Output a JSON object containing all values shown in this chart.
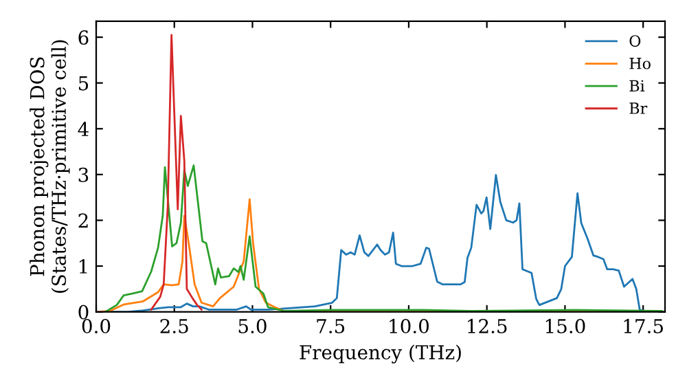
{
  "chart_data": {
    "type": "line",
    "xlabel": "Frequency (THz)",
    "ylabel": "Phonon projected DOS\n(States/THz·primitive cell)",
    "xlim": [
      0,
      18.2
    ],
    "ylim": [
      0,
      6.35
    ],
    "xticks": [
      {
        "value": 0,
        "label": "0.0"
      },
      2.5,
      {
        "value": 5,
        "label": "5.0"
      },
      7.5,
      {
        "value": 10,
        "label": "10.0"
      },
      12.5,
      {
        "value": 15,
        "label": "15.0"
      },
      17.5
    ],
    "yticks": [
      0,
      1,
      2,
      3,
      4,
      5,
      6
    ],
    "grid": false,
    "legend": "top right",
    "line_style": "solid",
    "marker": "none",
    "series": [
      {
        "name": "O",
        "color": "#1f77b4",
        "x": [
          0,
          1,
          1.5,
          2,
          2.3,
          2.7,
          2.9,
          3.1,
          3.3,
          3.6,
          4.5,
          4.8,
          4.95,
          5.5,
          6,
          7,
          7.55,
          7.7,
          7.84,
          8.0,
          8.14,
          8.27,
          8.43,
          8.58,
          8.71,
          8.99,
          9.1,
          9.24,
          9.37,
          9.5,
          9.59,
          9.77,
          10.12,
          10.38,
          10.56,
          10.65,
          10.91,
          11.09,
          11.66,
          11.79,
          11.88,
          12.0,
          12.17,
          12.32,
          12.39,
          12.49,
          12.61,
          12.79,
          12.93,
          13.12,
          13.34,
          13.45,
          13.54,
          13.64,
          13.93,
          14.08,
          14.18,
          14.74,
          14.88,
          15.0,
          15.22,
          15.4,
          15.52,
          15.72,
          15.91,
          16.06,
          16.23,
          16.35,
          16.54,
          16.72,
          16.89,
          17.16,
          17.28,
          17.39,
          17.6,
          18.1
        ],
        "values": [
          0,
          0,
          0.03,
          0.08,
          0.1,
          0.1,
          0.18,
          0.12,
          0.12,
          0.05,
          0.05,
          0.12,
          0.05,
          0.05,
          0.07,
          0.12,
          0.2,
          0.3,
          1.35,
          1.25,
          1.3,
          1.25,
          1.67,
          1.3,
          1.22,
          1.47,
          1.35,
          1.25,
          1.3,
          1.73,
          1.05,
          1.0,
          1.0,
          1.05,
          1.4,
          1.38,
          0.66,
          0.6,
          0.6,
          0.65,
          1.18,
          1.4,
          2.34,
          2.15,
          2.2,
          2.5,
          1.81,
          2.99,
          2.4,
          2.0,
          1.95,
          2.0,
          2.37,
          0.93,
          0.85,
          0.28,
          0.15,
          0.3,
          0.5,
          1.0,
          1.2,
          2.59,
          1.94,
          1.6,
          1.23,
          1.2,
          1.15,
          0.93,
          0.93,
          0.9,
          0.55,
          0.72,
          0.5,
          0.05,
          0,
          0
        ]
      },
      {
        "name": "Ho",
        "color": "#ff7f0e",
        "x": [
          0,
          0.44,
          0.88,
          1.5,
          1.98,
          2.16,
          2.42,
          2.64,
          2.76,
          2.82,
          2.96,
          3.15,
          3.37,
          3.74,
          3.96,
          4.4,
          4.72,
          4.91,
          5.02,
          5.21,
          5.43,
          5.72,
          6,
          7,
          18.1
        ],
        "values": [
          0,
          0.02,
          0.16,
          0.23,
          0.43,
          0.6,
          0.58,
          0.6,
          1.1,
          2.1,
          1.5,
          0.6,
          0.2,
          0.12,
          0.3,
          0.55,
          1.1,
          2.46,
          1.5,
          0.5,
          0.2,
          0.1,
          0.02,
          0,
          0
        ]
      },
      {
        "name": "Bi",
        "color": "#2ca02c",
        "x": [
          0.29,
          0.66,
          0.88,
          1.17,
          1.47,
          1.76,
          1.98,
          2.13,
          2.2,
          2.43,
          2.57,
          2.71,
          2.82,
          2.93,
          3.12,
          3.4,
          3.52,
          3.81,
          3.9,
          3.99,
          4.25,
          4.4,
          4.55,
          4.62,
          4.72,
          4.91,
          5.1,
          5.35,
          5.5,
          6,
          7.5,
          9,
          10.5,
          12,
          15.3,
          18.1
        ],
        "values": [
          0,
          0.15,
          0.36,
          0.4,
          0.45,
          0.88,
          1.4,
          2.1,
          3.16,
          1.43,
          1.5,
          1.95,
          3.1,
          2.75,
          3.2,
          1.54,
          1.5,
          0.6,
          0.95,
          0.75,
          0.78,
          0.95,
          0.87,
          1.0,
          0.7,
          1.65,
          0.55,
          0.4,
          0.1,
          0.02,
          0.04,
          0.04,
          0.04,
          0.02,
          0.04,
          0.02
        ]
      },
      {
        "name": "Br",
        "color": "#d62728",
        "x": [
          1.76,
          2.05,
          2.16,
          2.29,
          2.41,
          2.61,
          2.71,
          2.82,
          2.9,
          3.08,
          3.23,
          3.37
        ],
        "values": [
          0.05,
          0.33,
          0.6,
          2.3,
          6.05,
          2.24,
          4.28,
          3.3,
          0.5,
          0.3,
          0.15,
          0.05
        ]
      }
    ]
  }
}
